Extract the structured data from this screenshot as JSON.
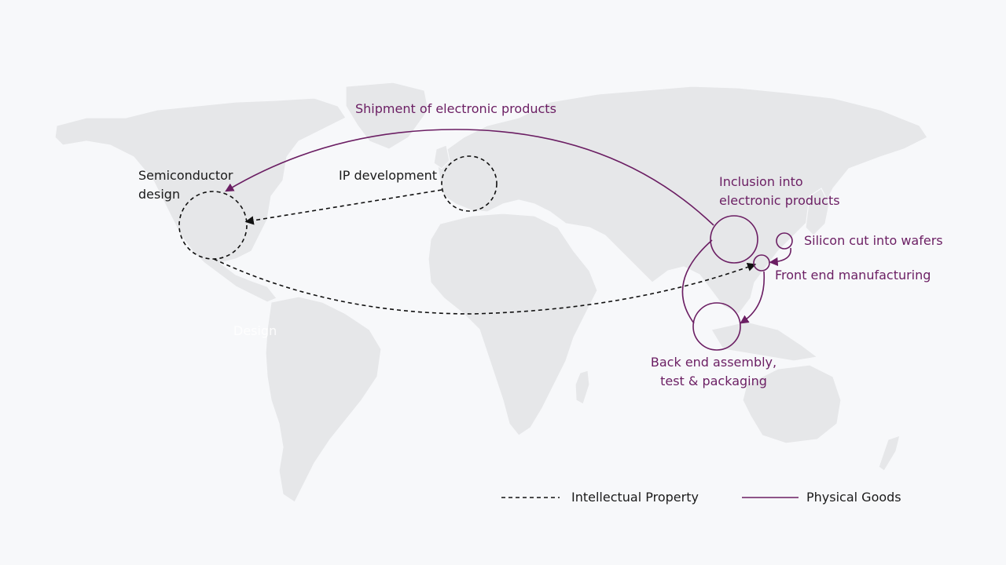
{
  "colors": {
    "background": "#f7f8fa",
    "land": "#e6e7e9",
    "intellectual_property": "#111111",
    "physical_goods": "#6b1e63"
  },
  "labels": {
    "semiconductor_design": "Semiconductor\ndesign",
    "ip_development": "IP development",
    "shipment": "Shipment of electronic products",
    "inclusion": "Inclusion into\nelectronic products",
    "silicon": "Silicon cut into wafers",
    "front_end": "Front end manufacturing",
    "back_end": "Back end assembly,\ntest & packaging",
    "ghost_design": "Design"
  },
  "legend": {
    "intellectual_property": "Intellectual Property",
    "physical_goods": "Physical Goods"
  }
}
